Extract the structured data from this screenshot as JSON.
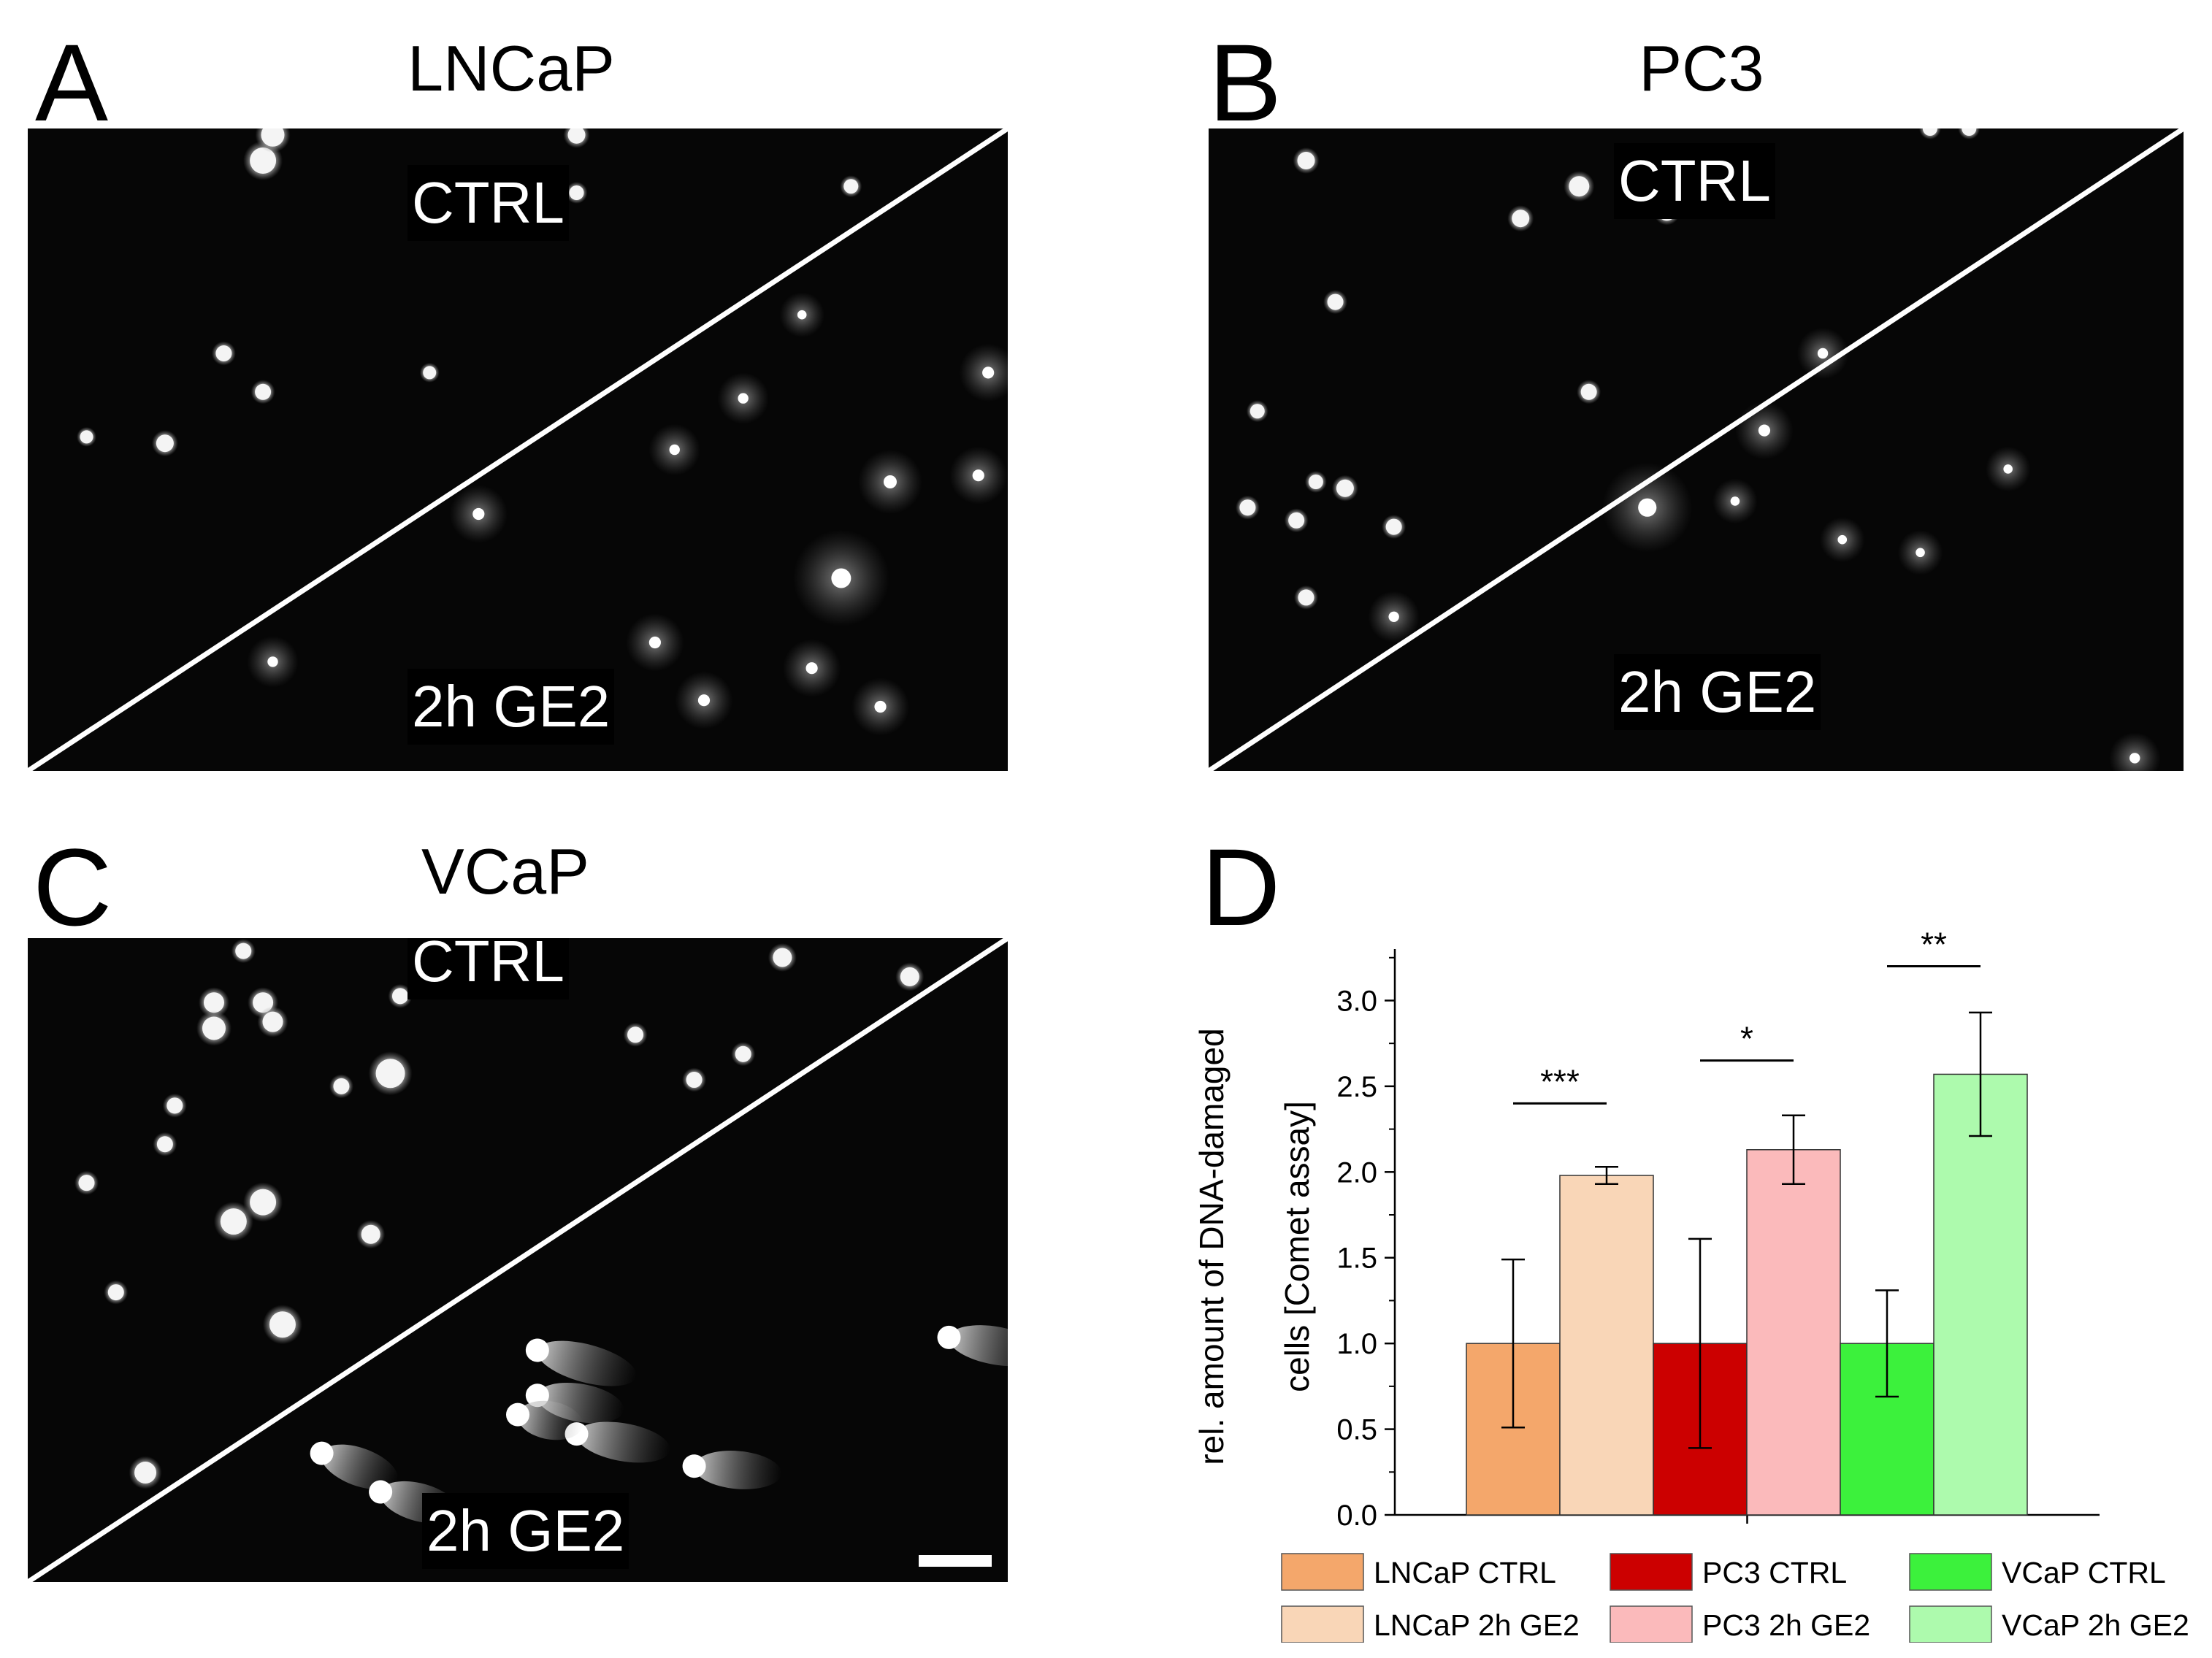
{
  "panels": {
    "A": {
      "letter": "A",
      "title": "LNCaP",
      "ctrl_label": "CTRL",
      "treated_label": "2h GE2"
    },
    "B": {
      "letter": "B",
      "title": "PC3",
      "ctrl_label": "CTRL",
      "treated_label": "2h GE2"
    },
    "C": {
      "letter": "C",
      "title": "VCaP",
      "ctrl_label": "CTRL",
      "treated_label": "2h GE2"
    },
    "D": {
      "letter": "D"
    }
  },
  "chart_data": {
    "type": "bar",
    "ylabel_line1": "rel. amount of DNA-damaged",
    "ylabel_line2": "cells [Comet assay]",
    "ylim": [
      0,
      3.3
    ],
    "yticks": [
      "0.0",
      "0.5",
      "1.0",
      "1.5",
      "2.0",
      "2.5",
      "3.0"
    ],
    "series": [
      {
        "name": "LNCaP CTRL",
        "value": 1.0,
        "error": 0.49,
        "color": "#f4a76b"
      },
      {
        "name": "LNCaP 2h GE2",
        "value": 1.98,
        "error": 0.05,
        "color": "#f9d6b7"
      },
      {
        "name": "PC3 CTRL",
        "value": 1.0,
        "error": 0.61,
        "color": "#cc0000"
      },
      {
        "name": "PC3 2h GE2",
        "value": 2.13,
        "error": 0.2,
        "color": "#fbbabb"
      },
      {
        "name": "VCaP CTRL",
        "value": 1.0,
        "error": 0.31,
        "color": "#3cf13c"
      },
      {
        "name": "VCaP 2h GE2",
        "value": 2.57,
        "error": 0.36,
        "color": "#adfaad"
      }
    ],
    "significance": [
      {
        "label": "***",
        "from": 0,
        "to": 1,
        "level": 2.4
      },
      {
        "label": "*",
        "from": 2,
        "to": 3,
        "level": 2.65
      },
      {
        "label": "**",
        "from": 4,
        "to": 5,
        "level": 3.2
      }
    ]
  }
}
